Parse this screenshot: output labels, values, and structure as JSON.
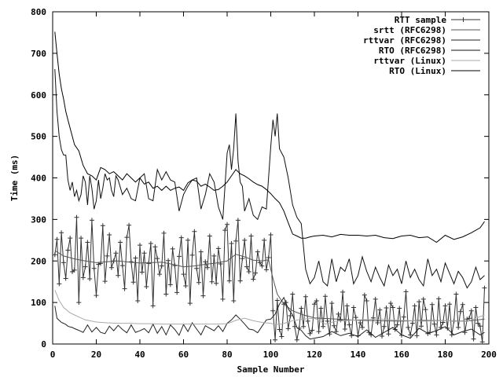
{
  "chart_data": {
    "type": "line",
    "title": "",
    "xlabel": "Sample Number",
    "ylabel": "Time (ms)",
    "xlim": [
      0,
      200
    ],
    "ylim": [
      0,
      800
    ],
    "xticks": [
      0,
      20,
      40,
      60,
      80,
      100,
      120,
      140,
      160,
      180,
      200
    ],
    "yticks": [
      0,
      100,
      200,
      300,
      400,
      500,
      600,
      700,
      800
    ],
    "grid": false,
    "legend_position": "top-right",
    "series": [
      {
        "name": "RTT sample",
        "color": "#333333",
        "marker": "plus",
        "x": [
          1,
          2,
          3,
          4,
          5,
          6,
          7,
          8,
          9,
          10,
          11,
          12,
          13,
          14,
          15,
          16,
          17,
          18,
          19,
          20,
          21,
          22,
          23,
          24,
          25,
          26,
          27,
          28,
          29,
          30,
          31,
          32,
          33,
          34,
          35,
          36,
          37,
          38,
          39,
          40,
          41,
          42,
          43,
          44,
          45,
          46,
          47,
          48,
          49,
          50,
          51,
          52,
          53,
          54,
          55,
          56,
          57,
          58,
          59,
          60,
          61,
          62,
          63,
          64,
          65,
          66,
          67,
          68,
          69,
          70,
          71,
          72,
          73,
          74,
          75,
          76,
          77,
          78,
          79,
          80,
          81,
          82,
          83,
          84,
          85,
          86,
          87,
          88,
          89,
          90,
          91,
          92,
          93,
          94,
          95,
          96,
          97,
          98,
          99,
          100,
          101,
          102,
          103,
          104,
          105,
          106,
          107,
          108,
          109,
          110,
          111,
          112,
          113,
          114,
          115,
          116,
          117,
          118,
          119,
          120,
          121,
          122,
          123,
          124,
          125,
          126,
          127,
          128,
          129,
          130,
          131,
          132,
          133,
          134,
          135,
          136,
          137,
          138,
          139,
          140,
          141,
          142,
          143,
          144,
          145,
          146,
          147,
          148,
          149,
          150,
          151,
          152,
          153,
          154,
          155,
          156,
          157,
          158,
          159,
          160,
          161,
          162,
          163,
          164,
          165,
          166,
          167,
          168,
          169,
          170,
          171,
          172,
          173,
          174,
          175,
          176,
          177,
          178,
          179,
          180,
          181,
          182,
          183,
          184,
          185,
          186,
          187,
          188,
          189,
          190,
          191,
          192,
          193,
          194,
          195,
          196,
          197,
          198
        ],
        "y": [
          215,
          252,
          145,
          268,
          196,
          158,
          226,
          255,
          174,
          178,
          305,
          100,
          255,
          160,
          186,
          245,
          157,
          298,
          182,
          117,
          192,
          194,
          285,
          151,
          212,
          263,
          184,
          200,
          219,
          165,
          245,
          189,
          133,
          257,
          286,
          198,
          149,
          207,
          104,
          238,
          173,
          219,
          138,
          194,
          242,
          92,
          234,
          206,
          168,
          188,
          267,
          120,
          201,
          143,
          229,
          189,
          124,
          211,
          256,
          168,
          140,
          250,
          98,
          214,
          271,
          182,
          148,
          222,
          116,
          198,
          184,
          260,
          150,
          212,
          146,
          230,
          193,
          108,
          274,
          288,
          152,
          242,
          104,
          248,
          298,
          152,
          206,
          250,
          186,
          174,
          260,
          156,
          171,
          222,
          196,
          188,
          250,
          179,
          208,
          263,
          80,
          10,
          105,
          35,
          18,
          96,
          100,
          37,
          68,
          120,
          42,
          10,
          38,
          86,
          42,
          114,
          55,
          25,
          33,
          96,
          104,
          30,
          86,
          42,
          115,
          55,
          24,
          98,
          44,
          30,
          72,
          58,
          125,
          36,
          92,
          46,
          20,
          88,
          64,
          20,
          51,
          40,
          118,
          104,
          28,
          22,
          63,
          108,
          51,
          82,
          19,
          42,
          87,
          24,
          98,
          88,
          35,
          46,
          86,
          21,
          65,
          126,
          40,
          22,
          50,
          92,
          20,
          102,
          43,
          108,
          83,
          25,
          28,
          95,
          48,
          22,
          109,
          40,
          52,
          92,
          38,
          96,
          22,
          55,
          120,
          40,
          78,
          95,
          28,
          60,
          62,
          80,
          12,
          88,
          50,
          43,
          5,
          135
        ]
      },
      {
        "name": "srtt (RFC6298)",
        "color": "#555555",
        "marker": "none",
        "x": [
          1,
          5,
          10,
          15,
          20,
          25,
          30,
          35,
          40,
          45,
          50,
          55,
          60,
          65,
          70,
          75,
          80,
          84,
          88,
          92,
          96,
          99,
          101,
          103,
          106,
          110,
          115,
          120,
          130,
          140,
          150,
          160,
          170,
          180,
          190,
          198
        ],
        "y": [
          225,
          212,
          205,
          200,
          196,
          198,
          200,
          197,
          195,
          196,
          197,
          192,
          186,
          188,
          192,
          195,
          200,
          216,
          210,
          202,
          200,
          203,
          158,
          120,
          96,
          80,
          70,
          63,
          60,
          57,
          56,
          55,
          57,
          56,
          55,
          60
        ]
      },
      {
        "name": "rttvar (RFC6298)",
        "color": "#222222",
        "marker": "none",
        "x": [
          1,
          2,
          3,
          4,
          5,
          6,
          7,
          8,
          9,
          10,
          12,
          14,
          16,
          18,
          20,
          22,
          24,
          26,
          28,
          30,
          32,
          34,
          36,
          38,
          40,
          42,
          44,
          46,
          48,
          50,
          52,
          54,
          56,
          58,
          60,
          62,
          64,
          66,
          68,
          70,
          72,
          74,
          76,
          78,
          80,
          82,
          84,
          86,
          88,
          90,
          92,
          94,
          96,
          98,
          100,
          102,
          104,
          106,
          108,
          110,
          112,
          114,
          116,
          118,
          120,
          124,
          128,
          132,
          136,
          140,
          144,
          148,
          152,
          156,
          160,
          164,
          168,
          172,
          176,
          180,
          184,
          188,
          192,
          196,
          198
        ],
        "y": [
          92,
          62,
          57,
          52,
          50,
          47,
          43,
          41,
          40,
          37,
          33,
          28,
          46,
          29,
          40,
          28,
          25,
          43,
          32,
          45,
          35,
          27,
          46,
          28,
          32,
          37,
          27,
          48,
          26,
          42,
          22,
          46,
          35,
          21,
          47,
          30,
          51,
          36,
          22,
          44,
          38,
          32,
          44,
          30,
          50,
          58,
          70,
          60,
          48,
          36,
          34,
          27,
          43,
          58,
          60,
          72,
          96,
          112,
          85,
          70,
          40,
          33,
          20,
          12,
          14,
          18,
          30,
          20,
          26,
          18,
          34,
          16,
          28,
          40,
          22,
          14,
          38,
          26,
          32,
          42,
          22,
          30,
          36,
          22,
          28
        ]
      },
      {
        "name": "RTO (RFC6298)",
        "color": "#111111",
        "marker": "none",
        "x": [
          1,
          2,
          3,
          4,
          5,
          6,
          7,
          8,
          9,
          10,
          11,
          12,
          13,
          14,
          15,
          16,
          17,
          18,
          19,
          20,
          21,
          22,
          23,
          24,
          25,
          26,
          27,
          28,
          29,
          30,
          32,
          34,
          36,
          38,
          40,
          42,
          44,
          46,
          48,
          50,
          52,
          54,
          56,
          58,
          60,
          62,
          64,
          66,
          68,
          70,
          72,
          74,
          76,
          78,
          80,
          81,
          82,
          83,
          84,
          85,
          86,
          87,
          88,
          90,
          92,
          94,
          96,
          98,
          100,
          101,
          102,
          103,
          104,
          106,
          108,
          110,
          112,
          114,
          116,
          118,
          120,
          122,
          124,
          126,
          128,
          130,
          132,
          134,
          136,
          138,
          140,
          142,
          144,
          146,
          148,
          150,
          152,
          154,
          156,
          158,
          160,
          162,
          164,
          166,
          168,
          170,
          172,
          174,
          176,
          178,
          180,
          182,
          184,
          186,
          188,
          190,
          192,
          194,
          196,
          198
        ],
        "y": [
          662,
          560,
          500,
          468,
          455,
          455,
          395,
          370,
          390,
          355,
          370,
          345,
          360,
          405,
          390,
          335,
          405,
          375,
          325,
          345,
          395,
          350,
          375,
          410,
          395,
          400,
          370,
          355,
          405,
          395,
          360,
          375,
          350,
          345,
          400,
          410,
          350,
          345,
          420,
          395,
          415,
          395,
          390,
          320,
          360,
          380,
          395,
          400,
          325,
          360,
          410,
          390,
          330,
          300,
          460,
          480,
          420,
          470,
          555,
          440,
          390,
          380,
          320,
          350,
          310,
          300,
          330,
          325,
          475,
          540,
          500,
          555,
          470,
          450,
          400,
          335,
          305,
          290,
          180,
          145,
          160,
          200,
          150,
          140,
          205,
          150,
          185,
          175,
          205,
          145,
          165,
          210,
          175,
          150,
          185,
          160,
          140,
          190,
          165,
          180,
          145,
          200,
          160,
          180,
          155,
          140,
          205,
          165,
          180,
          150,
          195,
          170,
          145,
          175,
          160,
          135,
          150,
          185,
          155,
          165
        ]
      },
      {
        "name": "rttvar (Linux)",
        "color": "#aaaaaa",
        "marker": "none",
        "x": [
          1,
          3,
          5,
          8,
          10,
          12,
          15,
          18,
          20,
          25,
          30,
          35,
          40,
          45,
          50,
          55,
          60,
          65,
          70,
          75,
          80,
          84,
          88,
          92,
          96,
          100,
          102,
          105,
          110,
          115,
          120,
          125,
          130,
          140,
          150,
          160,
          170,
          180,
          190,
          198
        ],
        "y": [
          130,
          105,
          88,
          75,
          70,
          65,
          58,
          55,
          53,
          51,
          50,
          50,
          49,
          49,
          48,
          48,
          48,
          48,
          48,
          48,
          49,
          57,
          62,
          56,
          52,
          50,
          47,
          48,
          56,
          60,
          62,
          48,
          55,
          58,
          60,
          57,
          55,
          56,
          54,
          70
        ]
      },
      {
        "name": "RTO (Linux)",
        "color": "#000000",
        "marker": "none",
        "x": [
          1,
          2,
          3,
          4,
          5,
          6,
          7,
          8,
          9,
          10,
          12,
          14,
          16,
          18,
          20,
          22,
          24,
          26,
          28,
          30,
          32,
          34,
          36,
          38,
          40,
          42,
          44,
          46,
          48,
          50,
          52,
          54,
          56,
          58,
          60,
          62,
          64,
          66,
          68,
          70,
          72,
          74,
          76,
          78,
          80,
          82,
          84,
          86,
          88,
          90,
          92,
          94,
          96,
          98,
          100,
          102,
          104,
          106,
          108,
          110,
          112,
          114,
          116,
          118,
          120,
          124,
          128,
          132,
          136,
          140,
          144,
          148,
          152,
          156,
          160,
          164,
          168,
          172,
          176,
          180,
          184,
          188,
          192,
          196,
          198
        ],
        "y": [
          752,
          700,
          650,
          615,
          590,
          560,
          540,
          520,
          500,
          480,
          465,
          430,
          410,
          405,
          395,
          425,
          420,
          410,
          415,
          405,
          395,
          410,
          400,
          390,
          400,
          385,
          390,
          375,
          380,
          370,
          380,
          370,
          375,
          378,
          370,
          388,
          395,
          392,
          380,
          385,
          378,
          370,
          372,
          380,
          390,
          405,
          420,
          410,
          405,
          398,
          390,
          384,
          380,
          372,
          362,
          350,
          340,
          320,
          292,
          265,
          260,
          255,
          255,
          258,
          260,
          262,
          258,
          264,
          262,
          262,
          260,
          262,
          256,
          254,
          260,
          262,
          256,
          258,
          245,
          262,
          252,
          258,
          268,
          280,
          295
        ]
      }
    ]
  }
}
